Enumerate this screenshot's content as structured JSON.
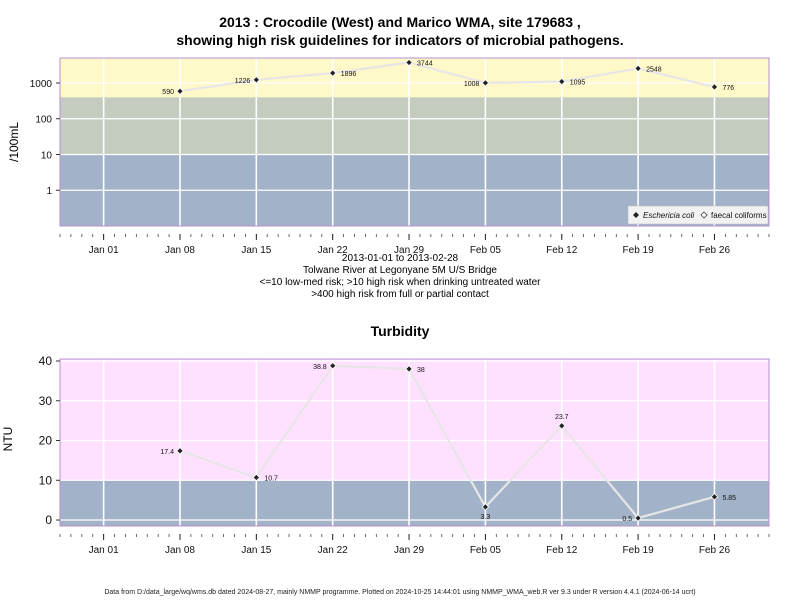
{
  "chart_data": [
    {
      "type": "line",
      "title_line1": "2013 : Crocodile (West) and Marico WMA, site 179683 ,",
      "title_line2": "showing high risk guidelines for indicators of microbial pathogens.",
      "ylabel": "/100mL",
      "yscale": "log",
      "ylim": [
        0.1,
        5000
      ],
      "yticks": [
        1,
        10,
        100,
        1000
      ],
      "ytick_labels": [
        "1",
        "10",
        "100",
        "1000"
      ],
      "xticks": [
        "2013-01-01",
        "2013-01-08",
        "2013-01-15",
        "2013-01-22",
        "2013-01-29",
        "2013-02-05",
        "2013-02-12",
        "2013-02-19",
        "2013-02-26"
      ],
      "xtick_labels": [
        "Jan 01",
        "Jan 08",
        "Jan 15",
        "Jan 22",
        "Jan 29",
        "Feb 05",
        "Feb 12",
        "Feb 19",
        "Feb 26"
      ],
      "xlim": [
        "2012-12-28",
        "2013-03-03"
      ],
      "bands": [
        {
          "from": 0.1,
          "to": 10,
          "color": "#a2b2c8"
        },
        {
          "from": 10,
          "to": 400,
          "color": "#c3ccbf"
        },
        {
          "from": 400,
          "to": 5000,
          "color": "#fff8c8"
        }
      ],
      "series": [
        {
          "name": "Eschericia coli",
          "x": [
            "2013-01-08",
            "2013-01-15",
            "2013-01-22",
            "2013-01-29",
            "2013-02-05",
            "2013-02-12",
            "2013-02-19",
            "2013-02-26"
          ],
          "y": [
            590,
            1226,
            1896,
            3744,
            1008,
            1095,
            2548,
            776
          ],
          "labels": [
            "590",
            "1226",
            "1896",
            "3744",
            "1008",
            "1095",
            "2548",
            "776"
          ]
        }
      ],
      "legend": {
        "position": "bottom-right",
        "entries": [
          "Eschericia coli",
          "faecal coliforms"
        ]
      }
    },
    {
      "type": "line",
      "title": "Turbidity",
      "ylabel": "NTU",
      "ylim": [
        -1.5,
        40.5
      ],
      "yticks": [
        0,
        10,
        20,
        30,
        40
      ],
      "ytick_labels": [
        "0",
        "10",
        "20",
        "30",
        "40"
      ],
      "xticks": [
        "2013-01-01",
        "2013-01-08",
        "2013-01-15",
        "2013-01-22",
        "2013-01-29",
        "2013-02-05",
        "2013-02-12",
        "2013-02-19",
        "2013-02-26"
      ],
      "xtick_labels": [
        "Jan 01",
        "Jan 08",
        "Jan 15",
        "Jan 22",
        "Jan 29",
        "Feb 05",
        "Feb 12",
        "Feb 19",
        "Feb 26"
      ],
      "xlim": [
        "2012-12-28",
        "2013-03-03"
      ],
      "bands": [
        {
          "from": -1.5,
          "to": 10,
          "color": "#a2b2c8"
        },
        {
          "from": 10,
          "to": 40.5,
          "color": "#ffe0ff"
        }
      ],
      "series": [
        {
          "name": "Turbidity",
          "x": [
            "2013-01-08",
            "2013-01-15",
            "2013-01-22",
            "2013-01-29",
            "2013-02-05",
            "2013-02-12",
            "2013-02-19",
            "2013-02-26"
          ],
          "y": [
            17.4,
            10.7,
            38.8,
            38,
            3.3,
            23.7,
            0.5,
            5.85
          ],
          "labels": [
            "17.4",
            "10.7",
            "38.8",
            "38",
            "3.3",
            "23.7",
            "0.5",
            "5.85"
          ]
        }
      ]
    }
  ],
  "info": {
    "line1": "2013-01-01 to 2013-02-28",
    "line2": "Tolwane River at Legonyane 5M U/S Bridge",
    "line3": "<=10 low-med risk; >10 high risk when drinking untreated water",
    "line4": ">400 high risk from full or partial contact"
  },
  "footer": "Data from D:/data_large/wq/wms.db dated 2024-08-27, mainly NMMP programme. Plotted on 2024-10-25 14:44:01 using NMMP_WMA_web.R ver 9.3 under R version 4.4.1 (2024-06-14 ucrt)",
  "colors": {
    "line": "#e6e6e6",
    "point": "#222222",
    "grid": "#ffffff",
    "frame": "#b98fcf"
  }
}
